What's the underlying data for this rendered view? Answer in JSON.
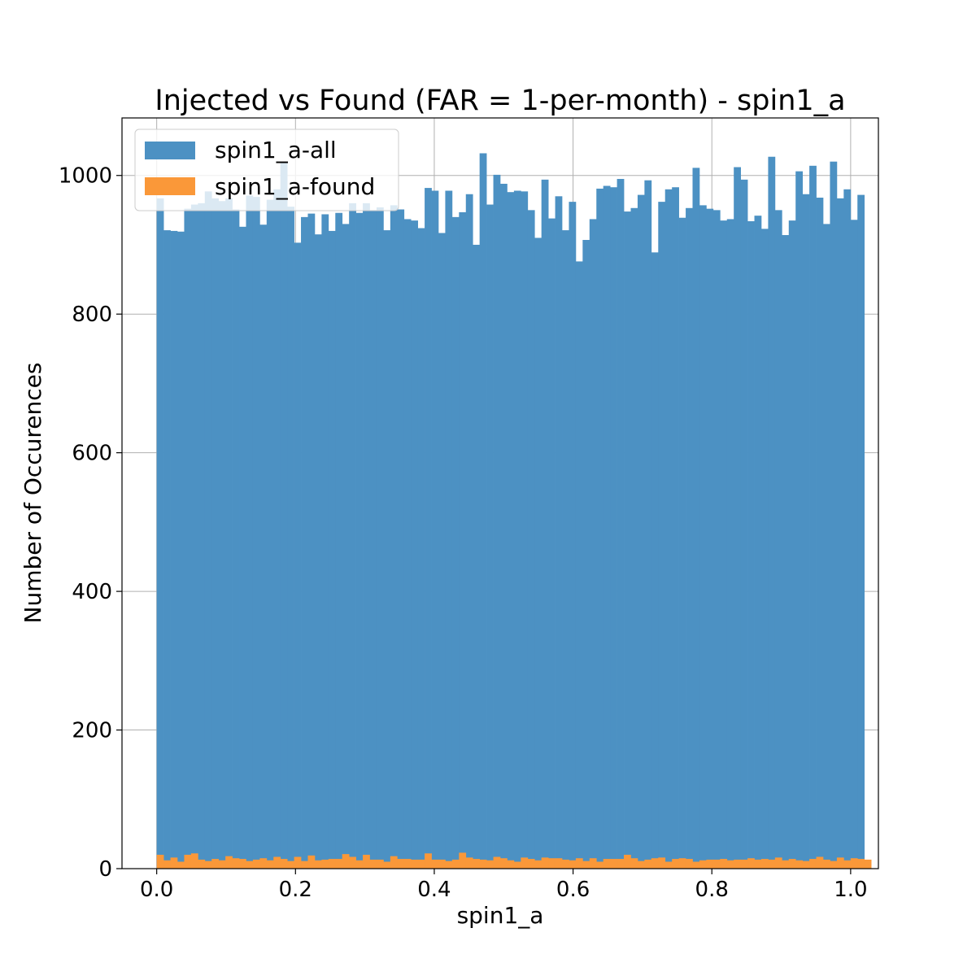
{
  "chart_data": {
    "type": "bar",
    "title": "Injected vs Found (FAR = 1-per-month) - spin1_a",
    "xlabel": "spin1_a",
    "ylabel": "Number of Occurences",
    "xlim": [
      -0.05,
      1.04
    ],
    "ylim": [
      0,
      1083
    ],
    "x_ticks": [
      "0.0",
      "0.2",
      "0.4",
      "0.6",
      "0.8",
      "1.0"
    ],
    "y_ticks": [
      "0",
      "200",
      "400",
      "600",
      "800",
      "1000"
    ],
    "grid": true,
    "legend_position": "top-left",
    "bin_start": 0.0,
    "bin_width": 0.0099,
    "series": [
      {
        "name": "spin1_a-all",
        "color": "#4c91c3",
        "values": [
          967,
          921,
          920,
          919,
          952,
          958,
          960,
          977,
          967,
          963,
          967,
          951,
          926,
          971,
          969,
          929,
          965,
          980,
          1018,
          955,
          903,
          940,
          945,
          915,
          944,
          920,
          946,
          930,
          960,
          946,
          960,
          950,
          954,
          921,
          957,
          951,
          937,
          935,
          924,
          982,
          978,
          917,
          978,
          940,
          947,
          973,
          900,
          1032,
          958,
          1001,
          988,
          976,
          978,
          977,
          950,
          910,
          994,
          938,
          970,
          921,
          962,
          876,
          907,
          937,
          981,
          985,
          983,
          995,
          948,
          953,
          972,
          993,
          889,
          962,
          980,
          983,
          939,
          953,
          1011,
          957,
          952,
          950,
          935,
          937,
          1012,
          994,
          934,
          942,
          923,
          1027,
          950,
          914,
          935,
          1006,
          973,
          1014,
          968,
          930,
          1020,
          967,
          980,
          936,
          972
        ]
      },
      {
        "name": "spin1_a-found",
        "color": "#fa9839",
        "values": [
          20,
          12,
          16,
          10,
          20,
          22,
          13,
          11,
          14,
          12,
          18,
          15,
          14,
          11,
          13,
          15,
          12,
          17,
          14,
          11,
          17,
          11,
          19,
          12,
          13,
          14,
          14,
          21,
          17,
          12,
          20,
          13,
          13,
          10,
          18,
          14,
          14,
          13,
          13,
          22,
          13,
          13,
          11,
          13,
          23,
          16,
          14,
          13,
          12,
          17,
          15,
          12,
          10,
          16,
          14,
          12,
          16,
          15,
          15,
          13,
          12,
          15,
          11,
          15,
          10,
          14,
          14,
          14,
          20,
          15,
          11,
          13,
          15,
          16,
          10,
          14,
          15,
          14,
          10,
          12,
          13,
          13,
          14,
          12,
          13,
          13,
          15,
          13,
          14,
          13,
          16,
          12,
          14,
          12,
          11,
          14,
          17,
          13,
          11,
          16,
          12,
          15,
          14,
          13
        ]
      }
    ]
  }
}
